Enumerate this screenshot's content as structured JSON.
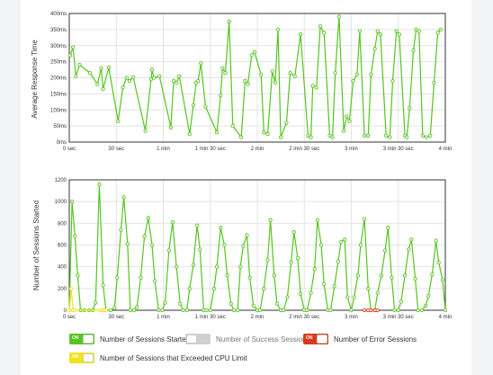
{
  "colors": {
    "series": "#55c41f",
    "success": "#bbbbbb",
    "error": "#d93a1a",
    "cpu": "#f0e21b",
    "toggle_off": "#d0d0d0"
  },
  "chart_data": [
    {
      "type": "line",
      "ylabel": "Average Response Time",
      "yticks": [
        "0ms",
        "50ms",
        "100ms",
        "150ms",
        "200ms",
        "250ms",
        "300ms",
        "350ms",
        "400ms"
      ],
      "xticks": [
        "0 sec",
        "30 sec",
        "1 min",
        "1 min 30 sec",
        "2 min",
        "2 min 30 sec",
        "3 min",
        "3 min 30 sec",
        "4 min"
      ],
      "ylim": [
        0,
        400
      ],
      "xlim": [
        0,
        4
      ],
      "grid": true,
      "series": [
        {
          "color": "#55c41f",
          "points": [
            [
              0.01,
              270
            ],
            [
              0.04,
              295
            ],
            [
              0.07,
              205
            ],
            [
              0.11,
              240
            ],
            [
              0.22,
              215
            ],
            [
              0.3,
              180
            ],
            [
              0.34,
              230
            ],
            [
              0.36,
              165
            ],
            [
              0.42,
              232
            ],
            [
              0.52,
              65
            ],
            [
              0.57,
              170
            ],
            [
              0.61,
              200
            ],
            [
              0.64,
              190
            ],
            [
              0.68,
              202
            ],
            [
              0.81,
              35
            ],
            [
              0.87,
              195
            ],
            [
              0.88,
              225
            ],
            [
              0.9,
              200
            ],
            [
              0.96,
              205
            ],
            [
              1.08,
              45
            ],
            [
              1.11,
              190
            ],
            [
              1.14,
              185
            ],
            [
              1.17,
              205
            ],
            [
              1.28,
              25
            ],
            [
              1.32,
              115
            ],
            [
              1.35,
              185
            ],
            [
              1.37,
              190
            ],
            [
              1.4,
              245
            ],
            [
              1.45,
              110
            ],
            [
              1.57,
              30
            ],
            [
              1.61,
              145
            ],
            [
              1.63,
              230
            ],
            [
              1.66,
              215
            ],
            [
              1.7,
              375
            ],
            [
              1.74,
              50
            ],
            [
              1.83,
              15
            ],
            [
              1.87,
              190
            ],
            [
              1.9,
              180
            ],
            [
              1.94,
              270
            ],
            [
              1.97,
              280
            ],
            [
              2.04,
              210
            ],
            [
              2.07,
              30
            ],
            [
              2.11,
              25
            ],
            [
              2.16,
              220
            ],
            [
              2.19,
              185
            ],
            [
              2.22,
              350
            ],
            [
              2.25,
              15
            ],
            [
              2.31,
              60
            ],
            [
              2.35,
              215
            ],
            [
              2.4,
              205
            ],
            [
              2.46,
              335
            ],
            [
              2.54,
              20
            ],
            [
              2.57,
              15
            ],
            [
              2.59,
              175
            ],
            [
              2.63,
              170
            ],
            [
              2.67,
              360
            ],
            [
              2.71,
              340
            ],
            [
              2.77,
              20
            ],
            [
              2.8,
              15
            ],
            [
              2.83,
              215
            ],
            [
              2.87,
              390
            ],
            [
              2.92,
              35
            ],
            [
              2.95,
              80
            ],
            [
              2.98,
              65
            ],
            [
              3.02,
              190
            ],
            [
              3.06,
              210
            ],
            [
              3.09,
              345
            ],
            [
              3.14,
              20
            ],
            [
              3.18,
              20
            ],
            [
              3.21,
              210
            ],
            [
              3.25,
              290
            ],
            [
              3.28,
              345
            ],
            [
              3.31,
              335
            ],
            [
              3.37,
              20
            ],
            [
              3.41,
              15
            ],
            [
              3.44,
              190
            ],
            [
              3.48,
              345
            ],
            [
              3.51,
              335
            ],
            [
              3.57,
              20
            ],
            [
              3.59,
              15
            ],
            [
              3.62,
              105
            ],
            [
              3.66,
              285
            ],
            [
              3.69,
              350
            ],
            [
              3.72,
              345
            ],
            [
              3.76,
              20
            ],
            [
              3.8,
              15
            ],
            [
              3.84,
              20
            ],
            [
              3.88,
              185
            ],
            [
              3.92,
              340
            ],
            [
              3.95,
              350
            ]
          ]
        }
      ]
    },
    {
      "type": "line",
      "ylabel": "Number of Sessions Started",
      "yticks": [
        "0",
        "200",
        "400",
        "600",
        "800",
        "1000",
        "1200"
      ],
      "xticks": [
        "0 sec",
        "30 sec",
        "1 min",
        "1 min 30 sec",
        "2 min",
        "2 min 30 sec",
        "3 min",
        "3 min 30 sec",
        "4 min"
      ],
      "ylim": [
        0,
        1200
      ],
      "xlim": [
        0,
        4
      ],
      "grid": true,
      "series": [
        {
          "color": "#55c41f",
          "points": [
            [
              0.0,
              0
            ],
            [
              0.03,
              1000
            ],
            [
              0.06,
              680
            ],
            [
              0.09,
              320
            ],
            [
              0.12,
              0
            ],
            [
              0.16,
              0
            ],
            [
              0.21,
              0
            ],
            [
              0.25,
              0
            ],
            [
              0.28,
              70
            ],
            [
              0.32,
              1160
            ],
            [
              0.36,
              230
            ],
            [
              0.39,
              0
            ],
            [
              0.44,
              0
            ],
            [
              0.48,
              20
            ],
            [
              0.51,
              300
            ],
            [
              0.55,
              740
            ],
            [
              0.58,
              1040
            ],
            [
              0.62,
              610
            ],
            [
              0.65,
              0
            ],
            [
              0.69,
              0
            ],
            [
              0.72,
              30
            ],
            [
              0.76,
              300
            ],
            [
              0.8,
              680
            ],
            [
              0.84,
              850
            ],
            [
              0.88,
              600
            ],
            [
              0.91,
              270
            ],
            [
              0.95,
              0
            ],
            [
              0.99,
              0
            ],
            [
              1.02,
              70
            ],
            [
              1.06,
              550
            ],
            [
              1.1,
              810
            ],
            [
              1.14,
              400
            ],
            [
              1.18,
              60
            ],
            [
              1.21,
              0
            ],
            [
              1.25,
              0
            ],
            [
              1.28,
              200
            ],
            [
              1.32,
              420
            ],
            [
              1.36,
              780
            ],
            [
              1.39,
              560
            ],
            [
              1.43,
              0
            ],
            [
              1.46,
              0
            ],
            [
              1.5,
              0
            ],
            [
              1.54,
              200
            ],
            [
              1.57,
              400
            ],
            [
              1.61,
              760
            ],
            [
              1.65,
              600
            ],
            [
              1.68,
              320
            ],
            [
              1.72,
              60
            ],
            [
              1.75,
              0
            ],
            [
              1.79,
              0
            ],
            [
              1.82,
              400
            ],
            [
              1.85,
              590
            ],
            [
              1.89,
              690
            ],
            [
              1.92,
              300
            ],
            [
              1.96,
              40
            ],
            [
              2.0,
              0
            ],
            [
              2.03,
              0
            ],
            [
              2.07,
              200
            ],
            [
              2.11,
              460
            ],
            [
              2.14,
              830
            ],
            [
              2.18,
              320
            ],
            [
              2.21,
              60
            ],
            [
              2.25,
              0
            ],
            [
              2.28,
              0
            ],
            [
              2.32,
              120
            ],
            [
              2.36,
              440
            ],
            [
              2.39,
              720
            ],
            [
              2.43,
              480
            ],
            [
              2.46,
              150
            ],
            [
              2.5,
              0
            ],
            [
              2.53,
              0
            ],
            [
              2.57,
              160
            ],
            [
              2.61,
              380
            ],
            [
              2.64,
              830
            ],
            [
              2.68,
              600
            ],
            [
              2.71,
              240
            ],
            [
              2.75,
              0
            ],
            [
              2.78,
              0
            ],
            [
              2.82,
              220
            ],
            [
              2.86,
              450
            ],
            [
              2.89,
              630
            ],
            [
              2.93,
              650
            ],
            [
              2.96,
              120
            ],
            [
              3.0,
              0
            ],
            [
              3.03,
              120
            ],
            [
              3.07,
              320
            ],
            [
              3.1,
              600
            ],
            [
              3.14,
              840
            ],
            [
              3.18,
              200
            ],
            [
              3.21,
              0
            ],
            [
              3.25,
              0
            ],
            [
              3.28,
              160
            ],
            [
              3.32,
              320
            ],
            [
              3.36,
              550
            ],
            [
              3.39,
              760
            ],
            [
              3.43,
              300
            ],
            [
              3.46,
              0
            ],
            [
              3.5,
              0
            ],
            [
              3.53,
              80
            ],
            [
              3.57,
              320
            ],
            [
              3.61,
              560
            ],
            [
              3.64,
              650
            ],
            [
              3.68,
              290
            ],
            [
              3.71,
              0
            ],
            [
              3.75,
              0
            ],
            [
              3.79,
              40
            ],
            [
              3.82,
              130
            ],
            [
              3.86,
              330
            ],
            [
              3.9,
              640
            ],
            [
              3.93,
              440
            ],
            [
              3.97,
              280
            ],
            [
              4.0,
              0
            ]
          ]
        },
        {
          "color": "#f0e21b",
          "points": [
            [
              0.0,
              0
            ],
            [
              0.02,
              200
            ],
            [
              0.04,
              0
            ],
            [
              0.06,
              0
            ],
            [
              0.33,
              0
            ],
            [
              0.35,
              0
            ],
            [
              0.37,
              0
            ],
            [
              0.39,
              0
            ]
          ]
        },
        {
          "color": "#d93a1a",
          "points": [
            [
              3.14,
              0
            ],
            [
              3.18,
              0
            ],
            [
              3.21,
              0
            ],
            [
              3.25,
              0
            ],
            [
              3.28,
              0
            ]
          ]
        }
      ]
    }
  ],
  "legend": [
    {
      "id": "started",
      "label": "Number of Sessions Started",
      "state": "ON",
      "on": true,
      "color": "#55c41f"
    },
    {
      "id": "success",
      "label": "Number of Success Sessions",
      "state": "",
      "on": false,
      "color": "#bbbbbb"
    },
    {
      "id": "error",
      "label": "Number of Error Sessions",
      "state": "ON",
      "on": true,
      "color": "#d93a1a"
    },
    {
      "id": "cpu",
      "label": "Number of Sessions that Exceeded CPU Limit",
      "state": "ON",
      "on": true,
      "color": "#f0e21b"
    }
  ]
}
